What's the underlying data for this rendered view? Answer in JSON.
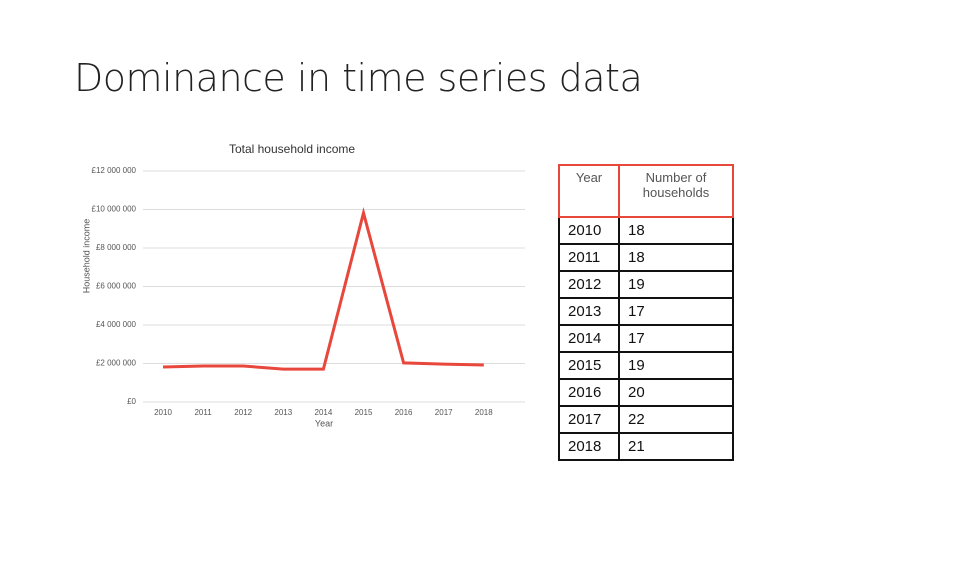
{
  "title": "Dominance in time series data",
  "chart_data": {
    "type": "line",
    "title": "Total household income",
    "x_label": "Year",
    "y_label": "Household income",
    "categories": [
      "2010",
      "2011",
      "2012",
      "2013",
      "2014",
      "2015",
      "2016",
      "2017",
      "2018"
    ],
    "series": [
      {
        "name": "Total household income",
        "color": "#e8473c",
        "values": [
          1820000,
          1870000,
          1870000,
          1710000,
          1710000,
          9820000,
          2030000,
          1970000,
          1920000
        ]
      }
    ],
    "ylim": [
      0,
      12000000
    ],
    "yticks": [
      {
        "value": 0,
        "label": "£0"
      },
      {
        "value": 2000000,
        "label": "£2 000 000"
      },
      {
        "value": 4000000,
        "label": "£4 000 000"
      },
      {
        "value": 6000000,
        "label": "£6 000 000"
      },
      {
        "value": 8000000,
        "label": "£8 000 000"
      },
      {
        "value": 10000000,
        "label": "£10 000 000"
      },
      {
        "value": 12000000,
        "label": "£12 000 000"
      }
    ],
    "grid": true
  },
  "table": {
    "header": [
      "Year",
      "Number of households"
    ],
    "rows": [
      [
        "2010",
        "18"
      ],
      [
        "2011",
        "18"
      ],
      [
        "2012",
        "19"
      ],
      [
        "2013",
        "17"
      ],
      [
        "2014",
        "17"
      ],
      [
        "2015",
        "19"
      ],
      [
        "2016",
        "20"
      ],
      [
        "2017",
        "22"
      ],
      [
        "2018",
        "21"
      ]
    ]
  }
}
